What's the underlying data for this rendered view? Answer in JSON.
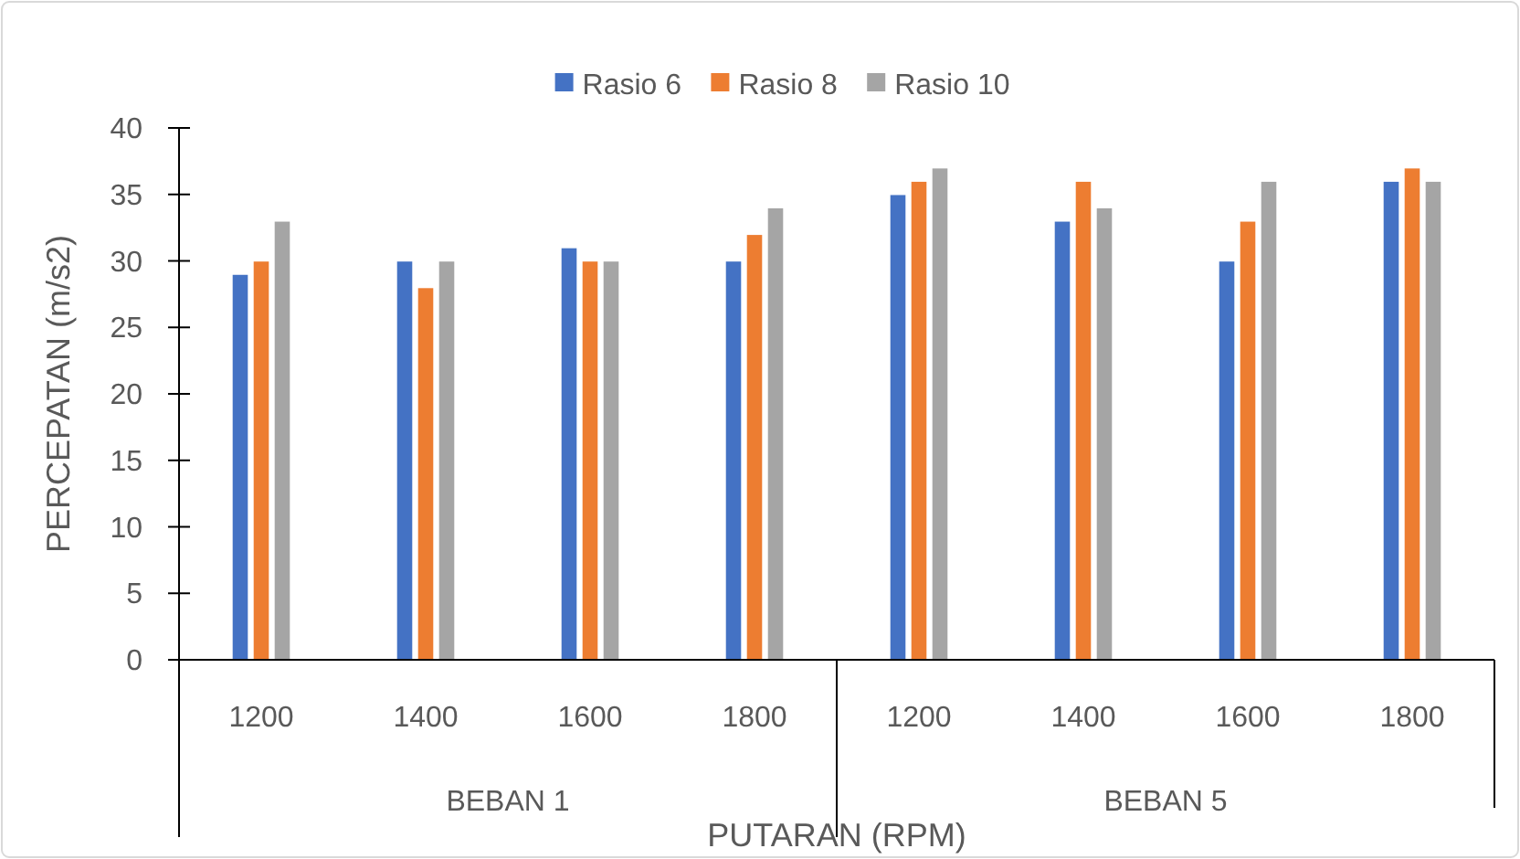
{
  "chart_data": {
    "type": "bar",
    "xlabel": "PUTARAN (RPM)",
    "ylabel": "PERCEPATAN (m/s2)",
    "categories": [
      "1200",
      "1400",
      "1600",
      "1800",
      "1200",
      "1400",
      "1600",
      "1800"
    ],
    "annotations": [
      "BEBAN 1",
      "BEBAN 5"
    ],
    "series": [
      {
        "name": "Rasio 6",
        "color": "#4472c4",
        "values": [
          29,
          30,
          31,
          30,
          35,
          33,
          30,
          36
        ]
      },
      {
        "name": "Rasio 8",
        "color": "#ed7d31",
        "values": [
          30,
          28,
          30,
          32,
          36,
          36,
          33,
          37
        ]
      },
      {
        "name": "Rasio 10",
        "color": "#a5a5a5",
        "values": [
          33,
          30,
          30,
          34,
          37,
          34,
          36,
          36
        ]
      }
    ],
    "ylim": [
      0,
      40
    ],
    "yticks": [
      0,
      5,
      10,
      15,
      20,
      25,
      30,
      35,
      40
    ],
    "grid": false,
    "legend": "top"
  }
}
